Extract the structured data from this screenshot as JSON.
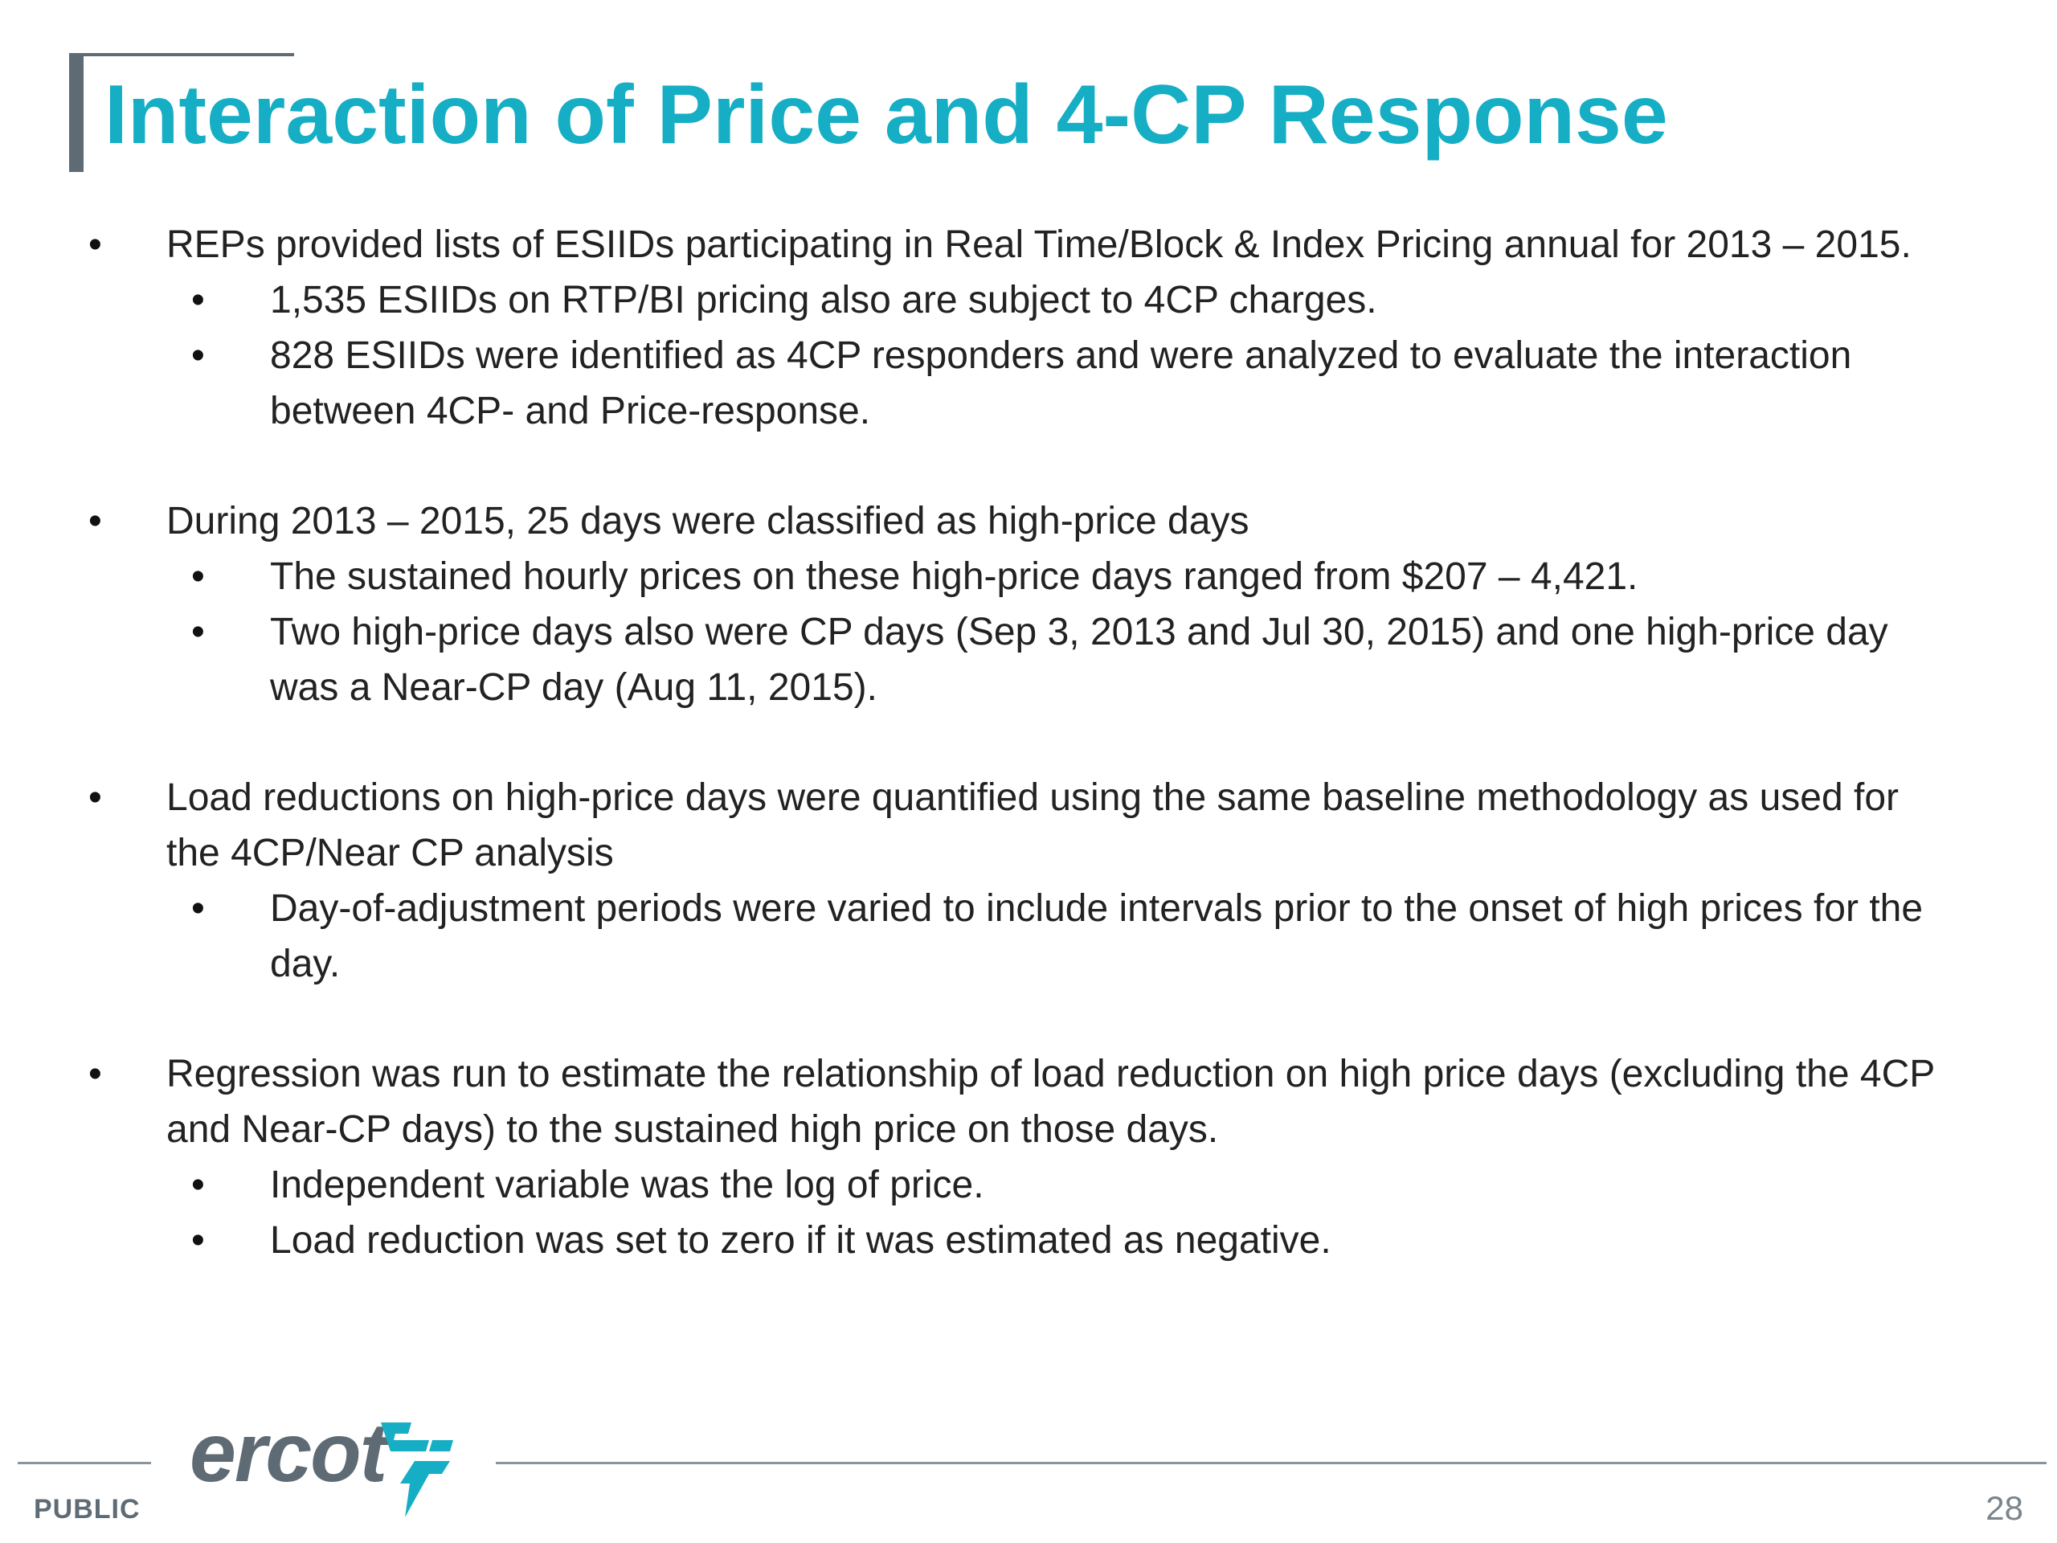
{
  "slide": {
    "title": "Interaction of Price and 4-CP Response"
  },
  "bullets": [
    {
      "lines": [
        "REPs provided lists of ESIIDs participating in Real Time/Block & Index Pricing annual for 2013 – 2015."
      ],
      "subs": [
        {
          "lines": [
            "1,535 ESIIDs on RTP/BI pricing also are subject to 4CP charges."
          ]
        },
        {
          "lines": [
            "828 ESIIDs were identified as 4CP responders and were analyzed to evaluate the interaction",
            "between 4CP- and Price-response."
          ]
        }
      ]
    },
    {
      "lines": [
        "During 2013 – 2015, 25 days were classified as high-price days"
      ],
      "subs": [
        {
          "lines": [
            "The sustained hourly prices on these high-price days ranged from $207 – 4,421."
          ]
        },
        {
          "lines": [
            "Two high-price days also were CP days (Sep 3, 2013 and Jul 30, 2015) and one high-price day",
            "was a Near-CP day (Aug 11, 2015)."
          ]
        }
      ]
    },
    {
      "lines": [
        "Load reductions on high-price days were quantified using the same baseline methodology as used for",
        "the 4CP/Near CP analysis"
      ],
      "subs": [
        {
          "lines": [
            "Day-of-adjustment periods were varied to include intervals prior to the onset of high prices for the",
            "day."
          ]
        }
      ]
    },
    {
      "lines": [
        "Regression was run to estimate the relationship of load reduction on high price days (excluding the 4CP",
        "and Near-CP days) to the sustained high price on those days."
      ],
      "subs": [
        {
          "lines": [
            "Independent variable was the log of price."
          ]
        },
        {
          "lines": [
            "Load reduction was set to zero if it was estimated as negative."
          ]
        }
      ]
    }
  ],
  "footer": {
    "public_label": "PUBLIC",
    "page_number": "28",
    "logo_text": "ercot",
    "logo_icon": "ercot-bolt-logo-icon"
  },
  "colors": {
    "title": "#16aec4",
    "accent_bar": "#5f6b74",
    "body_text": "#222222",
    "footer_gray": "#5f6b74"
  }
}
